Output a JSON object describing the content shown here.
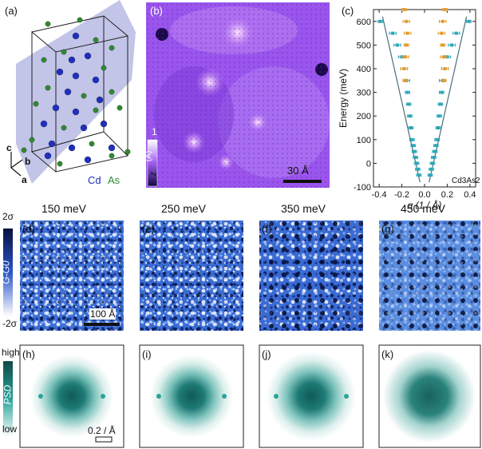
{
  "panels": {
    "a": {
      "label": "(a)",
      "axis_c": "c",
      "axis_b": "b",
      "axis_a": "a",
      "legend_cd": "Cd",
      "legend_as": "As"
    },
    "b": {
      "label": "(b)",
      "cbar_top": "1",
      "cbar_unit": "(Å)",
      "cbar_var": "z",
      "scalebar": "30 Å"
    },
    "c": {
      "label": "(c)",
      "material": "Cd3As2"
    },
    "d": {
      "label": "(d)",
      "energy": "150 meV",
      "cbar_top": "2σ",
      "cbar_bottom": "-2σ",
      "cbar_label": "G-G0",
      "scalebar": "100 Å"
    },
    "e": {
      "label": "(e)",
      "energy": "250 meV"
    },
    "f": {
      "label": "(f)",
      "energy": "350 meV"
    },
    "g": {
      "label": "(g)",
      "energy": "450 meV"
    },
    "h": {
      "label": "(h)",
      "cbar_top": "high",
      "cbar_bottom": "low",
      "cbar_label": "PSD",
      "scalebar": "0.2 / Å"
    },
    "i": {
      "label": "(i)"
    },
    "j": {
      "label": "(j)"
    },
    "k": {
      "label": "(k)"
    }
  },
  "colors": {
    "cd": "#1f2fbf",
    "as": "#2e8b2e",
    "teal": "#2aa6b8",
    "orange": "#e39a2b",
    "fit": "#4a6f80",
    "stm_purple": "#7b3fe0",
    "blue_map": "#2a55c9",
    "psd_teal": "#1f6e6a"
  },
  "chart_data": {
    "type": "scatter",
    "title": "",
    "xlabel": "q (1 / Å)",
    "ylabel": "Energy (meV)",
    "xlim": [
      -0.45,
      0.45
    ],
    "ylim": [
      -100,
      650
    ],
    "xticks": [
      -0.4,
      -0.2,
      0.0,
      0.2,
      0.4
    ],
    "xtick_labels": [
      "-0.4",
      "-0.2",
      "0.0",
      "0.2",
      "0.4"
    ],
    "yticks": [
      -100,
      0,
      100,
      200,
      300,
      400,
      500,
      600
    ],
    "ytick_labels": [
      "-100",
      "0",
      "100",
      "200",
      "300",
      "400",
      "500",
      "600"
    ],
    "series": [
      {
        "name": "teal-left",
        "color": "#2aa6b8",
        "x": [
          -0.05,
          -0.06,
          -0.07,
          -0.08,
          -0.09,
          -0.1,
          -0.11,
          -0.12,
          -0.13,
          -0.14,
          -0.15,
          -0.16,
          -0.18,
          -0.2,
          -0.24,
          -0.28,
          -0.39
        ],
        "y": [
          -50,
          -25,
          0,
          25,
          50,
          75,
          100,
          150,
          200,
          250,
          300,
          350,
          400,
          450,
          500,
          550,
          600
        ],
        "xerr": [
          0.02,
          0.02,
          0.02,
          0.02,
          0.02,
          0.02,
          0.02,
          0.02,
          0.02,
          0.02,
          0.02,
          0.03,
          0.03,
          0.03,
          0.03,
          0.03,
          0.02
        ]
      },
      {
        "name": "teal-right",
        "color": "#2aa6b8",
        "x": [
          0.05,
          0.06,
          0.07,
          0.08,
          0.09,
          0.1,
          0.11,
          0.12,
          0.13,
          0.14,
          0.15,
          0.16,
          0.18,
          0.2,
          0.24,
          0.28,
          0.39
        ],
        "y": [
          -50,
          -25,
          0,
          25,
          50,
          75,
          100,
          150,
          200,
          250,
          300,
          350,
          400,
          450,
          500,
          550,
          600
        ],
        "xerr": [
          0.02,
          0.02,
          0.02,
          0.02,
          0.02,
          0.02,
          0.02,
          0.02,
          0.02,
          0.02,
          0.02,
          0.03,
          0.03,
          0.03,
          0.03,
          0.03,
          0.02
        ]
      },
      {
        "name": "orange-left",
        "color": "#e39a2b",
        "x": [
          -0.17,
          -0.18,
          -0.17,
          -0.16,
          -0.15,
          -0.16,
          -0.18
        ],
        "y": [
          350,
          400,
          450,
          500,
          550,
          600,
          650
        ],
        "xerr": [
          0.02,
          0.03,
          0.03,
          0.02,
          0.03,
          0.03,
          0.02
        ]
      },
      {
        "name": "orange-right",
        "color": "#e39a2b",
        "x": [
          0.17,
          0.18,
          0.17,
          0.16,
          0.15,
          0.16,
          0.18
        ],
        "y": [
          350,
          400,
          450,
          500,
          550,
          600,
          650
        ],
        "xerr": [
          0.02,
          0.03,
          0.03,
          0.02,
          0.03,
          0.03,
          0.02
        ]
      }
    ],
    "fit_lines": [
      {
        "x": [
          -0.04,
          -0.37
        ],
        "y": [
          -80,
          620
        ]
      },
      {
        "x": [
          0.04,
          0.37
        ],
        "y": [
          -80,
          620
        ]
      }
    ],
    "annotation": "Cd3As2"
  }
}
